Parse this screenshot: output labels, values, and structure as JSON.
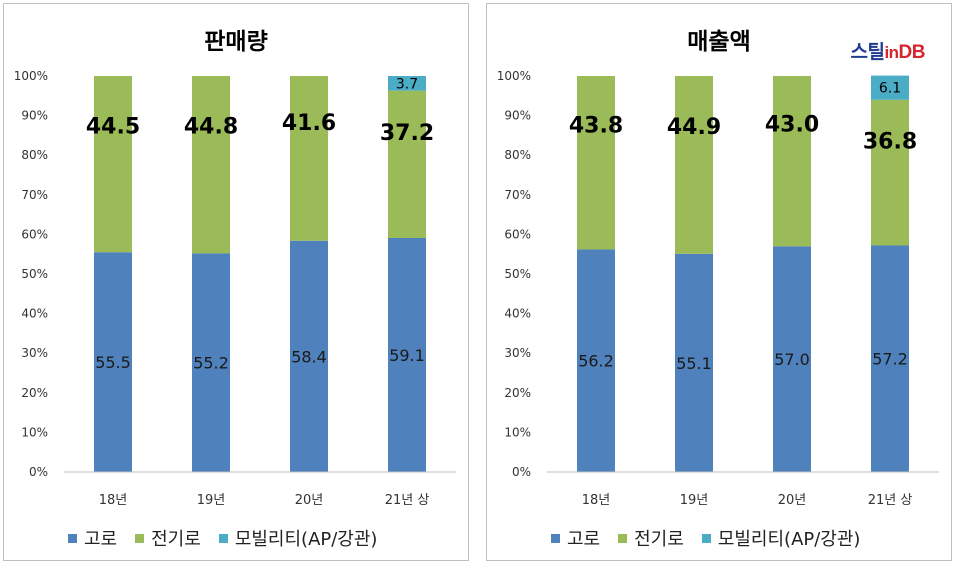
{
  "chart_data": [
    {
      "type": "bar",
      "stacked": true,
      "title": "판매량",
      "categories": [
        "18년",
        "19년",
        "20년",
        "21년 상"
      ],
      "ylim": [
        0,
        100
      ],
      "yticks": [
        "0%",
        "10%",
        "20%",
        "30%",
        "40%",
        "50%",
        "60%",
        "70%",
        "80%",
        "90%",
        "100%"
      ],
      "series": [
        {
          "name": "고로",
          "color": "#4f81bd",
          "values": [
            55.5,
            55.2,
            58.4,
            59.1
          ],
          "labels": [
            "55.5",
            "55.2",
            "58.4",
            "59.1"
          ]
        },
        {
          "name": "전기로",
          "color": "#9bbb59",
          "values": [
            44.5,
            44.8,
            41.6,
            37.2
          ],
          "labels": [
            "44.5",
            "44.8",
            "41.6",
            "37.2"
          ]
        },
        {
          "name": "모빌리티(AP/강관)",
          "color": "#4bacc6",
          "values": [
            0,
            0,
            0,
            3.7
          ],
          "labels": [
            "",
            "",
            "",
            "3.7"
          ]
        }
      ],
      "legend": "bottom"
    },
    {
      "type": "bar",
      "stacked": true,
      "title": "매출액",
      "categories": [
        "18년",
        "19년",
        "20년",
        "21년 상"
      ],
      "ylim": [
        0,
        100
      ],
      "yticks": [
        "0%",
        "10%",
        "20%",
        "30%",
        "40%",
        "50%",
        "60%",
        "70%",
        "80%",
        "90%",
        "100%"
      ],
      "series": [
        {
          "name": "고로",
          "color": "#4f81bd",
          "values": [
            56.2,
            55.1,
            57.0,
            57.2
          ],
          "labels": [
            "56.2",
            "55.1",
            "57.0",
            "57.2"
          ]
        },
        {
          "name": "전기로",
          "color": "#9bbb59",
          "values": [
            43.8,
            44.9,
            43.0,
            36.8
          ],
          "labels": [
            "43.8",
            "44.9",
            "43.0",
            "36.8"
          ]
        },
        {
          "name": "모빌리티(AP/강관)",
          "color": "#4bacc6",
          "values": [
            0,
            0,
            0,
            6.1
          ],
          "labels": [
            "",
            "",
            "",
            "6.1"
          ]
        }
      ],
      "legend": "bottom"
    }
  ],
  "watermark": {
    "main": "스틸",
    "in": "in",
    "db": "DB"
  }
}
